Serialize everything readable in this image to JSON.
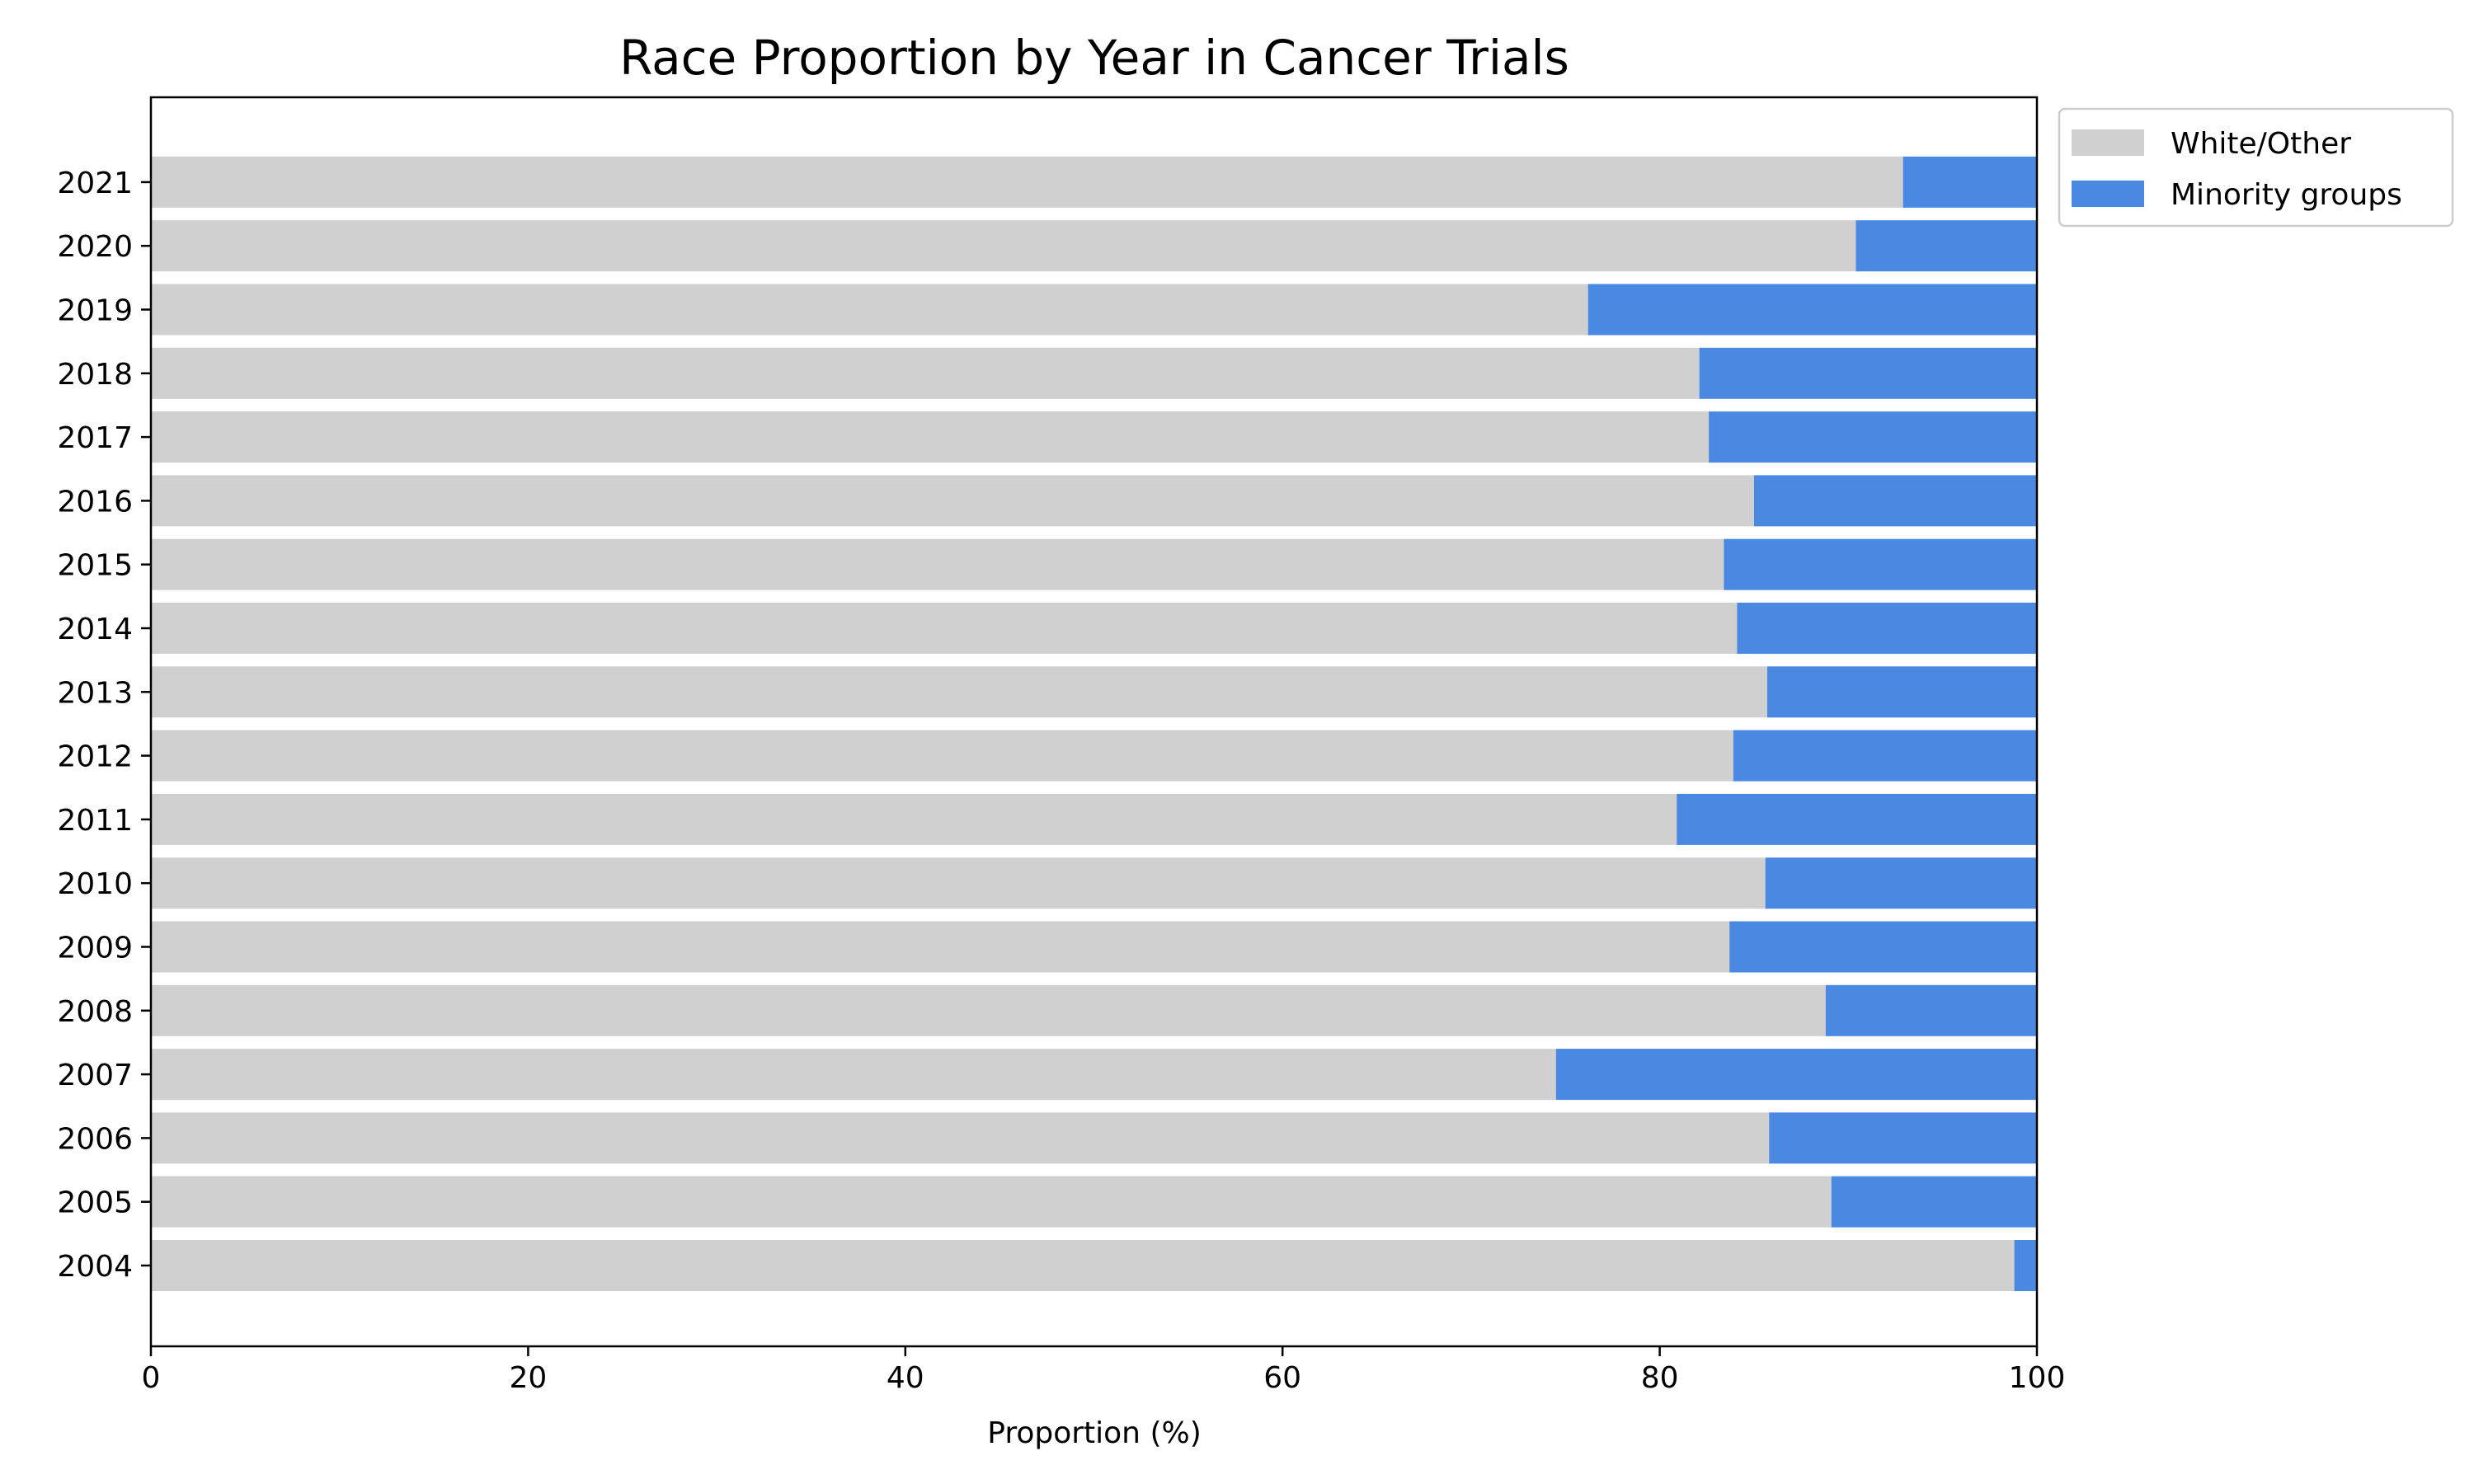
{
  "chart_data": {
    "type": "bar",
    "orientation": "horizontal",
    "stacked": true,
    "title": "Race Proportion by Year in Cancer Trials",
    "xlabel": "Proportion (%)",
    "ylabel": "",
    "xlim": [
      0,
      100
    ],
    "xticks": [
      0,
      20,
      40,
      60,
      80,
      100
    ],
    "grid": false,
    "legend_position": "outside top-right",
    "categories": [
      "2004",
      "2005",
      "2006",
      "2007",
      "2008",
      "2009",
      "2010",
      "2011",
      "2012",
      "2013",
      "2014",
      "2015",
      "2016",
      "2017",
      "2018",
      "2019",
      "2020",
      "2021"
    ],
    "series": [
      {
        "name": "White/Other",
        "color": "#d0d0d0",
        "values": [
          98.8,
          89.1,
          85.8,
          74.5,
          88.8,
          83.7,
          85.6,
          80.9,
          83.9,
          85.7,
          84.1,
          83.4,
          85.0,
          82.6,
          82.1,
          76.2,
          90.4,
          92.9
        ]
      },
      {
        "name": "Minority groups",
        "color": "#4a89e2",
        "values": [
          1.2,
          10.9,
          14.2,
          25.5,
          11.2,
          16.3,
          14.4,
          19.1,
          16.1,
          14.3,
          15.9,
          16.6,
          15.0,
          17.4,
          17.9,
          23.8,
          9.6,
          7.1
        ]
      }
    ]
  }
}
